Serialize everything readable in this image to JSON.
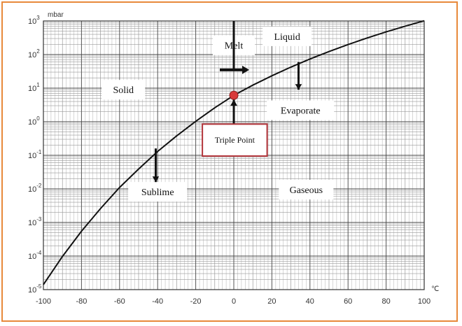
{
  "chart_data": {
    "type": "line",
    "title": "",
    "xlabel": "",
    "ylabel": "",
    "x_unit": "℃",
    "y_unit": "mbar",
    "y_scale": "log",
    "xlim": [
      -100,
      100
    ],
    "ylim_exponents": [
      -5,
      3
    ],
    "x_ticks": [
      "-100",
      "-80",
      "-60",
      "-40",
      "-20",
      "0",
      "20",
      "40",
      "60",
      "80",
      "100"
    ],
    "y_ticks": [
      {
        "base": "10",
        "exp": "-5"
      },
      {
        "base": "10",
        "exp": "-4"
      },
      {
        "base": "10",
        "exp": "-3"
      },
      {
        "base": "10",
        "exp": "-2"
      },
      {
        "base": "10",
        "exp": "-1"
      },
      {
        "base": "10",
        "exp": "0"
      },
      {
        "base": "10",
        "exp": "1"
      },
      {
        "base": "10",
        "exp": "2"
      },
      {
        "base": "10",
        "exp": "3"
      }
    ],
    "grid": true,
    "curve_color": "#111111",
    "series": [
      {
        "x": [
          -100,
          -90,
          -80,
          -70,
          -60,
          -50,
          -40,
          -30,
          -20,
          -10,
          0,
          10,
          20,
          30,
          40,
          50,
          60,
          70,
          80,
          90,
          100
        ],
        "y": [
          1.41e-05,
          9.7e-05,
          0.00055,
          0.0026,
          0.011,
          0.039,
          0.13,
          0.38,
          1.03,
          2.6,
          6.1,
          12.3,
          23.4,
          42.4,
          73.8,
          123,
          199,
          312,
          474,
          701,
          1013
        ]
      }
    ],
    "triple_point": {
      "x": 0.01,
      "y": 6.11,
      "label": "Triple Point",
      "color": "#d93a3a"
    },
    "regions": [
      {
        "label": "Solid"
      },
      {
        "label": "Liquid"
      },
      {
        "label": "Gaseous"
      }
    ],
    "transitions": [
      {
        "label": "Melt",
        "direction": "horizontal"
      },
      {
        "label": "Evaporate",
        "direction": "down"
      },
      {
        "label": "Sublime",
        "direction": "down"
      }
    ]
  }
}
